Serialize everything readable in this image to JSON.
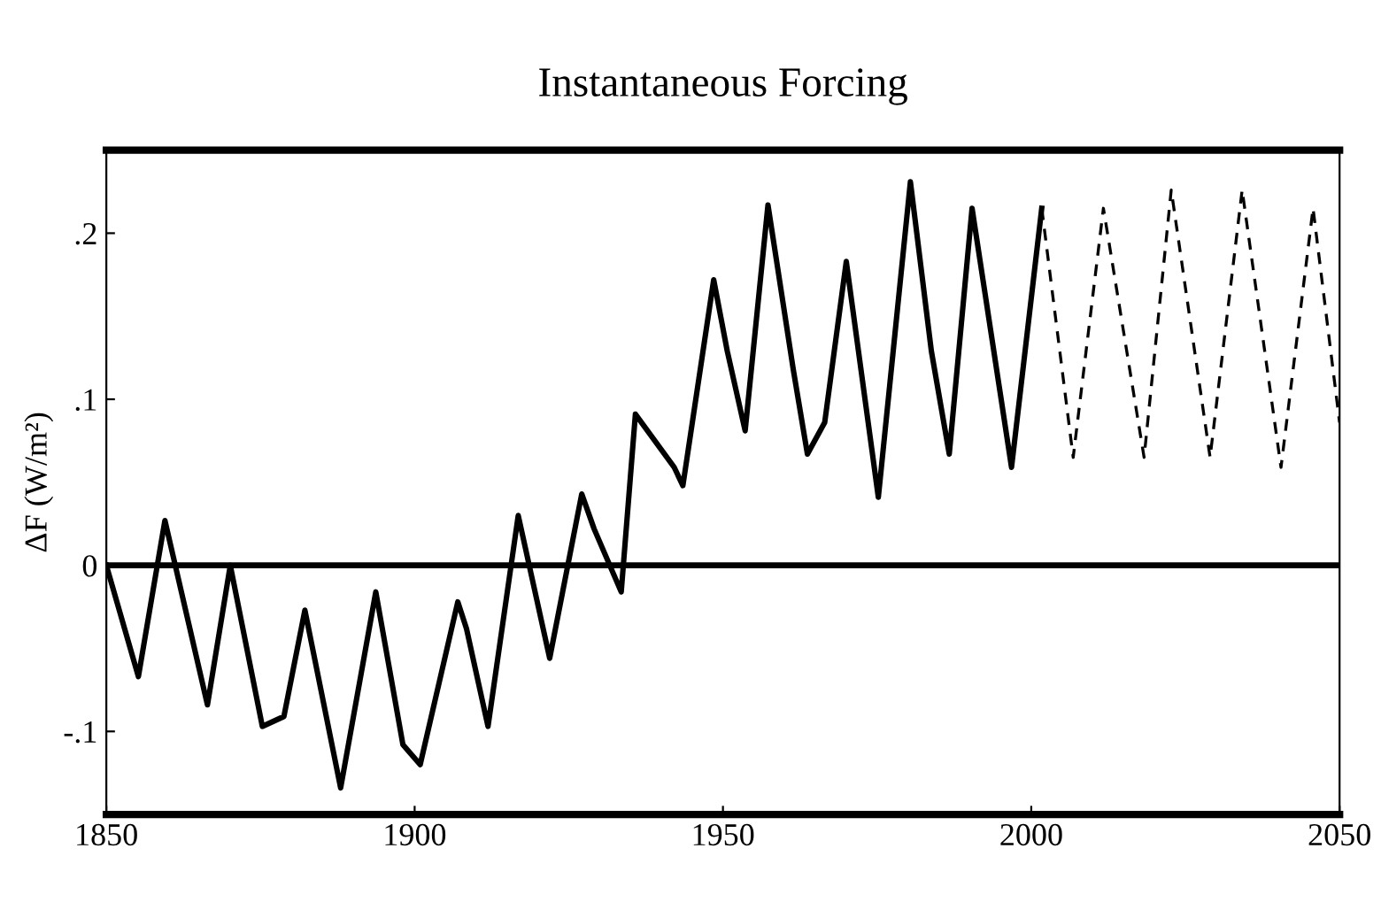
{
  "chart_data": {
    "type": "line",
    "title": "Instantaneous Forcing",
    "ylabel": "ΔF (W/m²)",
    "xlim": [
      1850,
      2050
    ],
    "xticks": [
      1850,
      1900,
      1950,
      2000,
      2050
    ],
    "ylim": [
      -0.15,
      0.25
    ],
    "yticks": [
      {
        "value": 0.2,
        "label": ".2"
      },
      {
        "value": 0.1,
        "label": ".1"
      },
      {
        "value": 0,
        "label": "0"
      },
      {
        "value": -0.1,
        "label": "-.1"
      }
    ],
    "ref_lines": [
      {
        "axis": "y",
        "value": 0,
        "color": "#000000"
      }
    ],
    "grid": false,
    "legend": false,
    "series": [
      {
        "color": "#000000",
        "line_style": "solid",
        "x": [
          1850,
          1855.2,
          1859.5,
          1866.4,
          1870.1,
          1875.3,
          1878.8,
          1882.2,
          1888,
          1893.7,
          1898.1,
          1900.9,
          1907,
          1908.4,
          1911.9,
          1916.8,
          1921.9,
          1927.1,
          1929.1,
          1933.5,
          1935.8,
          1942.1,
          1943.5,
          1948.5,
          1950.7,
          1953.6,
          1957.3,
          1961.4,
          1963.7,
          1966.5,
          1970,
          1975.2,
          1980.4,
          1983.8,
          1986.7,
          1990.4,
          1996.8,
          2001.7
        ],
        "values": [
          0,
          -0.067,
          0.027,
          -0.084,
          0,
          -0.097,
          -0.091,
          -0.027,
          -0.134,
          -0.016,
          -0.108,
          -0.12,
          -0.022,
          -0.038,
          -0.097,
          0.03,
          -0.056,
          0.043,
          0.022,
          -0.016,
          0.091,
          0.059,
          0.048,
          0.172,
          0.129,
          0.081,
          0.217,
          0.118,
          0.067,
          0.086,
          0.183,
          0.041,
          0.231,
          0.129,
          0.067,
          0.215,
          0.059,
          0.215
        ]
      },
      {
        "color": "#000000",
        "line_style": "dashed",
        "x": [
          2001.7,
          2006.8,
          2011.7,
          2018.3,
          2022.7,
          2029,
          2034.2,
          2040.5,
          2045.7,
          2050
        ],
        "values": [
          0.215,
          0.065,
          0.215,
          0.065,
          0.226,
          0.065,
          0.226,
          0.059,
          0.215,
          0.086
        ]
      }
    ]
  }
}
